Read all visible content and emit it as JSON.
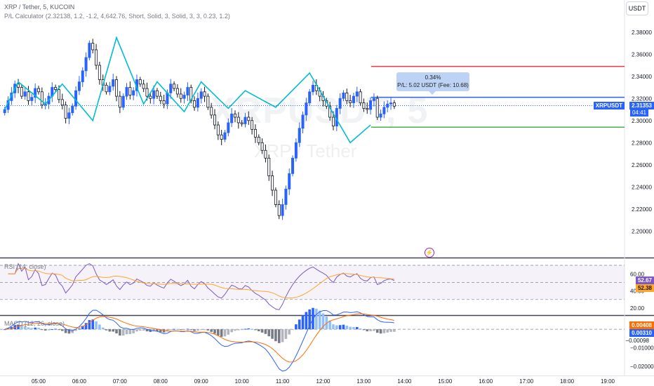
{
  "header": {
    "symbol_line": "XRP / Tether, 5, KUCOIN",
    "indicator_line": "P/L Calculator (2.32138, 1.2, -1.2, 4,642.76, Short, Solid, 3, Solid, 3, 3, 0.23, 1.2)"
  },
  "currency_button": "USDT",
  "watermark": {
    "ticker": "XRPUSDT, 5",
    "name": "XRP / Tether"
  },
  "tooltip": {
    "line1": "0.34%",
    "line2": "P/L: 5.02 USDT (Fee: 10.68)"
  },
  "price_tags": {
    "symbol": "XRPUSDT",
    "price": "2.31353",
    "countdown": "04:41"
  },
  "rsi_panel": {
    "title": "RSI (14, close)",
    "value_a": "52.67",
    "value_b": "52.38"
  },
  "macd_panel": {
    "title": "MACD (12, 26, close)",
    "value_a": "0.00408",
    "value_b": "0.00310",
    "value_c": "−0.00098"
  },
  "colors": {
    "bull": "#2962ff",
    "bear": "#131722",
    "zigzag": "#00bcd4",
    "stop": "#f23645",
    "entry": "#2962ff",
    "target": "#4caf50",
    "rsi_line": "#7e57c2",
    "rsi_ma": "#ffa726",
    "macd": "#2962ff",
    "signal": "#ff6d00"
  },
  "chart_data": [
    {
      "type": "candlestick",
      "title": "XRP / Tether, 5, KUCOIN",
      "ylim": [
        2.19,
        2.39
      ],
      "y_ticks": [
        "2.38000",
        "2.36000",
        "2.34000",
        "2.32000",
        "2.30000",
        "2.28000",
        "2.26000",
        "2.24000",
        "2.22000",
        "2.20000"
      ],
      "x_ticks": [
        "05:00",
        "06:00",
        "07:00",
        "08:00",
        "09:00",
        "10:00",
        "11:00",
        "12:00",
        "13:00",
        "14:00",
        "15:00",
        "16:00",
        "17:00",
        "18:00",
        "19:00"
      ],
      "levels": {
        "stop": 2.349,
        "entry": 2.321,
        "target": 2.294,
        "last": 2.3135
      },
      "zigzag": [
        [
          0,
          2.31
        ],
        [
          4,
          2.335
        ],
        [
          12,
          2.315
        ],
        [
          17,
          2.333
        ],
        [
          26,
          2.3
        ],
        [
          33,
          2.375
        ],
        [
          41,
          2.315
        ],
        [
          45,
          2.335
        ],
        [
          53,
          2.308
        ],
        [
          58,
          2.335
        ],
        [
          66,
          2.311
        ],
        [
          71,
          2.327
        ],
        [
          80,
          2.312
        ],
        [
          90,
          2.343
        ],
        [
          102,
          2.28
        ],
        [
          108,
          2.296
        ]
      ],
      "close": [
        2.31,
        2.318,
        2.325,
        2.333,
        2.33,
        2.322,
        2.326,
        2.318,
        2.321,
        2.329,
        2.326,
        2.314,
        2.315,
        2.322,
        2.33,
        2.328,
        2.319,
        2.314,
        2.302,
        2.307,
        2.313,
        2.327,
        2.335,
        2.345,
        2.357,
        2.37,
        2.364,
        2.35,
        2.337,
        2.332,
        2.326,
        2.331,
        2.337,
        2.322,
        2.312,
        2.322,
        2.33,
        2.323,
        2.327,
        2.337,
        2.333,
        2.329,
        2.322,
        2.32,
        2.327,
        2.322,
        2.318,
        2.315,
        2.325,
        2.333,
        2.329,
        2.324,
        2.32,
        2.323,
        2.33,
        2.318,
        2.312,
        2.32,
        2.326,
        2.322,
        2.312,
        2.305,
        2.296,
        2.287,
        2.283,
        2.289,
        2.298,
        2.306,
        2.303,
        2.298,
        2.297,
        2.303,
        2.3,
        2.292,
        2.285,
        2.28,
        2.273,
        2.266,
        2.25,
        2.237,
        2.224,
        2.214,
        2.224,
        2.238,
        2.252,
        2.266,
        2.28,
        2.293,
        2.305,
        2.316,
        2.326,
        2.332,
        2.327,
        2.322,
        2.318,
        2.313,
        2.303,
        2.295,
        2.311,
        2.32,
        2.325,
        2.318,
        2.316,
        2.322,
        2.326,
        2.316,
        2.311,
        2.31,
        2.318,
        2.32,
        2.303,
        2.306,
        2.312,
        2.315,
        2.316,
        2.313
      ],
      "time_start": "04:10",
      "interval_minutes": 5
    },
    {
      "type": "line",
      "title": "RSI (14, close)",
      "ylim": [
        15,
        75
      ],
      "y_ticks": [
        "60.00",
        "40.00",
        "20.00"
      ],
      "band": [
        30,
        70
      ]
    },
    {
      "type": "bar",
      "title": "MACD (12, 26, close)",
      "ylim": [
        -0.023,
        0.0065
      ],
      "y_ticks": [
        "−0.00098",
        "−0.01000",
        "−0.02000"
      ],
      "series": [
        {
          "name": "MACD",
          "last": 0.00408
        },
        {
          "name": "Signal",
          "last": 0.0031
        },
        {
          "name": "Histogram",
          "last": -0.00098
        }
      ]
    }
  ]
}
